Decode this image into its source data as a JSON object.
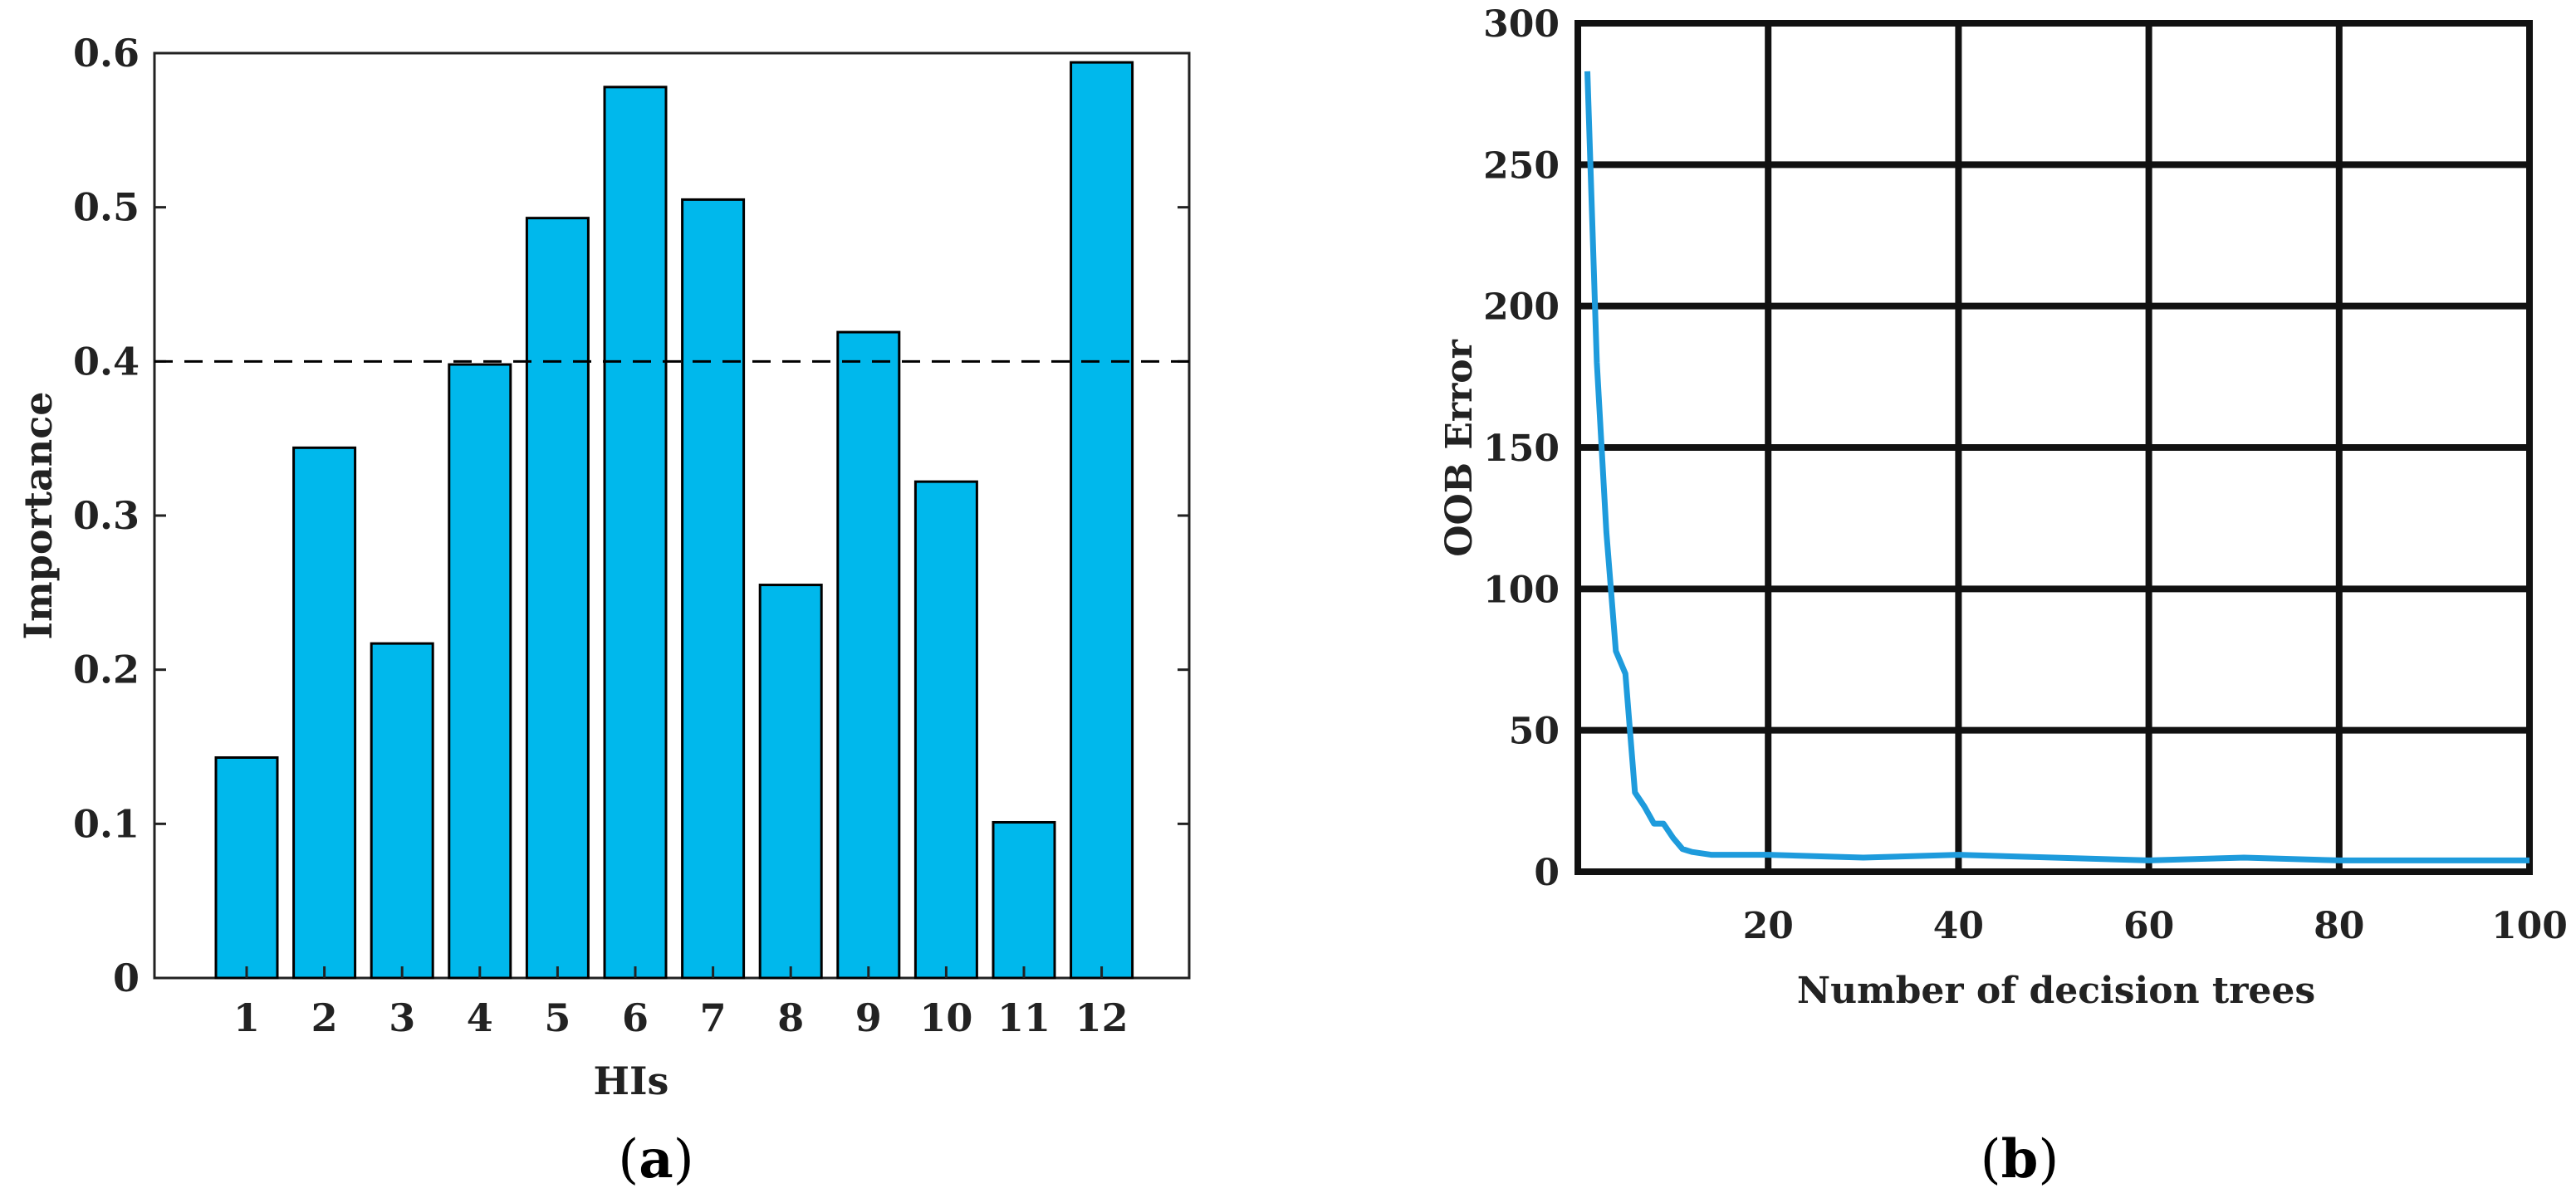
{
  "chart_data": [
    {
      "type": "bar",
      "panel": "(a)",
      "panel_letter": "a",
      "categories": [
        "1",
        "2",
        "3",
        "4",
        "5",
        "6",
        "7",
        "8",
        "9",
        "10",
        "11",
        "12"
      ],
      "values": [
        0.143,
        0.344,
        0.217,
        0.398,
        0.493,
        0.578,
        0.505,
        0.255,
        0.419,
        0.322,
        0.101,
        0.594
      ],
      "xlabel": "HIs",
      "ylabel": "Importance",
      "ylim": [
        0,
        0.6
      ],
      "yticks": [
        0,
        0.1,
        0.2,
        0.3,
        0.4,
        0.5,
        0.6
      ],
      "threshold": 0.4,
      "grid": false,
      "colors": {
        "bar": "#00b8ec",
        "edge": "#000000",
        "threshold": "#000000"
      }
    },
    {
      "type": "line",
      "panel": "(b)",
      "panel_letter": "b",
      "x": [
        1,
        2,
        3,
        4,
        5,
        6,
        7,
        8,
        9,
        10,
        11,
        12,
        14,
        16,
        20,
        30,
        40,
        50,
        60,
        70,
        80,
        90,
        100
      ],
      "y": [
        283,
        180,
        120,
        78,
        70,
        28,
        23,
        17,
        17,
        12,
        8,
        7,
        6,
        6,
        6,
        5,
        6,
        5,
        4,
        5,
        4,
        4,
        4
      ],
      "xlabel": "Number of decision trees",
      "ylabel": "OOB Error",
      "xlim": [
        0,
        100
      ],
      "ylim": [
        0,
        300
      ],
      "xticks": [
        20,
        40,
        60,
        80,
        100
      ],
      "yticks": [
        0,
        50,
        100,
        150,
        200,
        250,
        300
      ],
      "grid": true,
      "colors": {
        "line": "#1e9bdc",
        "grid": "#111111"
      }
    }
  ]
}
